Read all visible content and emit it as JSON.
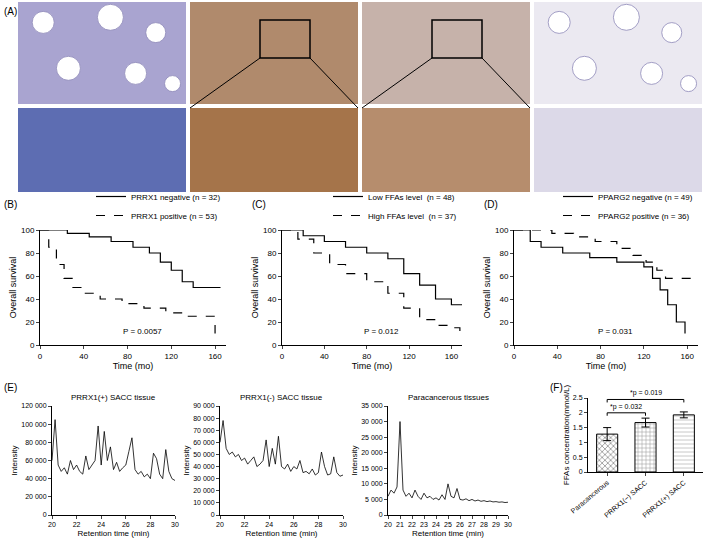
{
  "chart_data": [
    {
      "type": "image",
      "panel": "(A)"
    },
    {
      "type": "step",
      "panel": "(B)",
      "x_label": "Time (mo)",
      "y_label": "Overall survival",
      "annotation": "P = 0.0057",
      "xlim": [
        0,
        170
      ],
      "xticks": [
        0,
        40,
        80,
        120,
        160
      ],
      "ylim": [
        0,
        100
      ],
      "yticks": [
        0,
        20,
        40,
        60,
        80,
        100
      ],
      "grid": false,
      "legend": "upper right",
      "series": [
        {
          "name": "PRRX1 negative (n = 32)",
          "color": "#000000",
          "line_style": "solid",
          "x": [
            0,
            25,
            45,
            65,
            85,
            100,
            110,
            120,
            130,
            140,
            165
          ],
          "values": [
            100,
            97,
            94,
            90,
            85,
            80,
            72,
            65,
            55,
            50,
            50
          ]
        },
        {
          "name": "PRRX1 positive (n = 53)",
          "color": "#000000",
          "line_style": "dashed",
          "x": [
            0,
            8,
            15,
            22,
            30,
            40,
            55,
            75,
            95,
            115,
            135,
            150,
            160
          ],
          "values": [
            100,
            85,
            70,
            58,
            50,
            45,
            40,
            36,
            32,
            28,
            25,
            25,
            10
          ]
        }
      ]
    },
    {
      "type": "step",
      "panel": "(C)",
      "x_label": "Time (mo)",
      "y_label": "Overall survival",
      "annotation": "P = 0.012",
      "xlim": [
        0,
        170
      ],
      "xticks": [
        0,
        40,
        80,
        120,
        160
      ],
      "ylim": [
        0,
        100
      ],
      "yticks": [
        0,
        20,
        40,
        60,
        80,
        100
      ],
      "grid": false,
      "legend": "upper right",
      "series": [
        {
          "name": "Low FFAs level  (n = 48)",
          "color": "#000000",
          "line_style": "solid",
          "x": [
            0,
            20,
            40,
            60,
            80,
            100,
            115,
            130,
            145,
            160,
            170
          ],
          "values": [
            100,
            95,
            90,
            85,
            80,
            75,
            62,
            52,
            40,
            35,
            35
          ]
        },
        {
          "name": "High FFAs level  (n = 37)",
          "color": "#000000",
          "line_style": "dashed",
          "x": [
            0,
            15,
            30,
            45,
            60,
            80,
            100,
            115,
            130,
            145,
            160,
            168
          ],
          "values": [
            100,
            92,
            80,
            70,
            62,
            55,
            45,
            32,
            22,
            17,
            15,
            8
          ]
        }
      ]
    },
    {
      "type": "step",
      "panel": "(D)",
      "x_label": "Time (mo)",
      "y_label": "Overall survival",
      "annotation": "P = 0.031",
      "xlim": [
        0,
        170
      ],
      "xticks": [
        0,
        40,
        80,
        120,
        160
      ],
      "ylim": [
        0,
        100
      ],
      "yticks": [
        0,
        20,
        40,
        60,
        80,
        100
      ],
      "grid": false,
      "legend": "upper right",
      "series": [
        {
          "name": "PPARG2 negative (n = 49)",
          "color": "#000000",
          "line_style": "solid",
          "x": [
            0,
            15,
            25,
            45,
            70,
            95,
            120,
            128,
            135,
            142,
            150,
            158
          ],
          "values": [
            100,
            90,
            85,
            80,
            76,
            72,
            68,
            58,
            48,
            35,
            20,
            10
          ]
        },
        {
          "name": "PPARG2 positive (n = 36)",
          "color": "#000000",
          "line_style": "dashed",
          "x": [
            0,
            35,
            55,
            75,
            95,
            110,
            122,
            132,
            140,
            165
          ],
          "values": [
            100,
            97,
            94,
            90,
            84,
            78,
            72,
            65,
            58,
            58
          ]
        }
      ]
    },
    {
      "type": "line",
      "panel": "(E)",
      "title": "PRRX1(+) SACC tissue",
      "x_label": "Retention time (min)",
      "y_label": "Intensity",
      "color": "#000000",
      "grid": false,
      "xlim": [
        20,
        30
      ],
      "xticks": [
        20,
        22,
        24,
        26,
        28,
        30
      ],
      "ylim": [
        0,
        120000
      ],
      "yticks": [
        0,
        {
          "value": 20000,
          "label": "20 000"
        },
        {
          "value": 40000,
          "label": "40 000"
        },
        {
          "value": 60000,
          "label": "60 000"
        },
        {
          "value": 80000,
          "label": "80 000"
        },
        {
          "value": 100000,
          "label": "100 000"
        },
        {
          "value": 120000,
          "label": "120 000"
        }
      ],
      "x": [
        20,
        20.25,
        20.5,
        20.75,
        21,
        21.25,
        21.5,
        21.75,
        22,
        22.25,
        22.5,
        22.75,
        23,
        23.25,
        23.5,
        23.75,
        24,
        24.25,
        24.5,
        24.75,
        25,
        25.25,
        25.5,
        25.75,
        26,
        26.25,
        26.5,
        26.75,
        27,
        27.25,
        27.5,
        27.75,
        28,
        28.25,
        28.5,
        28.75,
        29,
        29.25,
        29.5,
        29.75,
        30
      ],
      "values": [
        60000,
        105000,
        55000,
        48000,
        52000,
        45000,
        60000,
        50000,
        55000,
        48000,
        45000,
        65000,
        50000,
        55000,
        60000,
        98000,
        55000,
        92000,
        60000,
        75000,
        50000,
        58000,
        48000,
        52000,
        55000,
        70000,
        85000,
        50000,
        45000,
        48000,
        42000,
        45000,
        40000,
        68000,
        62000,
        45000,
        40000,
        72000,
        48000,
        40000,
        38000
      ]
    },
    {
      "type": "line",
      "title": "PRRX1(-) SACC tissue",
      "x_label": "Retention time (min)",
      "y_label": "Intensity",
      "color": "#000000",
      "grid": false,
      "xlim": [
        20,
        30
      ],
      "xticks": [
        20,
        22,
        24,
        26,
        28,
        30
      ],
      "ylim": [
        0,
        90000
      ],
      "yticks": [
        0,
        {
          "value": 10000,
          "label": "10 000"
        },
        {
          "value": 20000,
          "label": "20 000"
        },
        {
          "value": 30000,
          "label": "30 000"
        },
        {
          "value": 40000,
          "label": "40 000"
        },
        {
          "value": 50000,
          "label": "50 000"
        },
        {
          "value": 60000,
          "label": "60 000"
        },
        {
          "value": 70000,
          "label": "70 000"
        },
        {
          "value": 80000,
          "label": "80 000"
        },
        {
          "value": 90000,
          "label": "90 000"
        }
      ],
      "x": [
        20,
        20.25,
        20.5,
        20.75,
        21,
        21.25,
        21.5,
        21.75,
        22,
        22.25,
        22.5,
        22.75,
        23,
        23.25,
        23.5,
        23.75,
        24,
        24.25,
        24.5,
        24.75,
        25,
        25.25,
        25.5,
        25.75,
        26,
        26.25,
        26.5,
        26.75,
        27,
        27.25,
        27.5,
        27.75,
        28,
        28.25,
        28.5,
        28.75,
        29,
        29.25,
        29.5,
        29.75,
        30
      ],
      "values": [
        60000,
        78000,
        55000,
        50000,
        52000,
        48000,
        50000,
        45000,
        47000,
        42000,
        45000,
        48000,
        40000,
        42000,
        45000,
        62000,
        40000,
        55000,
        42000,
        65000,
        40000,
        38000,
        42000,
        36000,
        40000,
        38000,
        45000,
        35000,
        36000,
        34000,
        38000,
        33000,
        35000,
        52000,
        40000,
        33000,
        34000,
        48000,
        35000,
        32000,
        33000
      ]
    },
    {
      "type": "line",
      "title": "Paracancerous tissues",
      "x_label": "Retention time (min)",
      "y_label": "Intensity",
      "color": "#000000",
      "grid": false,
      "xlim": [
        20,
        30
      ],
      "xticks": [
        20,
        21,
        22,
        23,
        24,
        25,
        26,
        27,
        28,
        29,
        30
      ],
      "ylim": [
        0,
        35000
      ],
      "yticks": [
        0,
        {
          "value": 5000,
          "label": "5 000"
        },
        {
          "value": 10000,
          "label": "10 000"
        },
        {
          "value": 15000,
          "label": "15 000"
        },
        {
          "value": 20000,
          "label": "20 000"
        },
        {
          "value": 25000,
          "label": "25 000"
        },
        {
          "value": 30000,
          "label": "30 000"
        },
        {
          "value": 35000,
          "label": "35 000"
        }
      ],
      "x": [
        20,
        20.25,
        20.5,
        20.75,
        21,
        21.25,
        21.5,
        21.75,
        22,
        22.25,
        22.5,
        22.75,
        23,
        23.25,
        23.5,
        23.75,
        24,
        24.25,
        24.5,
        24.75,
        25,
        25.25,
        25.5,
        25.75,
        26,
        26.25,
        26.5,
        26.75,
        27,
        27.25,
        27.5,
        27.75,
        28,
        28.25,
        28.5,
        28.75,
        29,
        29.25,
        29.5,
        29.75,
        30
      ],
      "values": [
        6000,
        8000,
        7000,
        9000,
        30000,
        8000,
        6000,
        7000,
        5500,
        8000,
        6000,
        5000,
        7000,
        5500,
        6000,
        5000,
        5500,
        4800,
        6500,
        5000,
        10000,
        6000,
        5500,
        8500,
        5000,
        4800,
        5200,
        4600,
        5000,
        4500,
        4800,
        4400,
        4600,
        4300,
        4500,
        4200,
        4300,
        4100,
        4200,
        4000,
        4100
      ]
    },
    {
      "type": "bar",
      "panel": "(F)",
      "y_label": "FFAs concentration(mmol/L)",
      "grid": false,
      "categories": [
        "Paracancerous",
        "PRRX1(−) SACC",
        "PRRX1(+) SACC"
      ],
      "values": [
        1.28,
        1.67,
        1.93
      ],
      "errors": [
        0.22,
        0.15,
        0.1
      ],
      "colors": [
        "#5a5a5a",
        "#9a9a9a",
        "#c8c8c8"
      ],
      "ylim": [
        0,
        2.5
      ],
      "yticks": [
        0,
        0.5,
        1,
        1.5,
        2,
        2.5
      ],
      "comparisons": [
        {
          "from": "Paracancerous",
          "to": "PRRX1(+) SACC",
          "label": "*p = 0.019"
        },
        {
          "from": "Paracancerous",
          "to": "PRRX1(−) SACC",
          "label": "*p = 0.032"
        }
      ]
    }
  ]
}
